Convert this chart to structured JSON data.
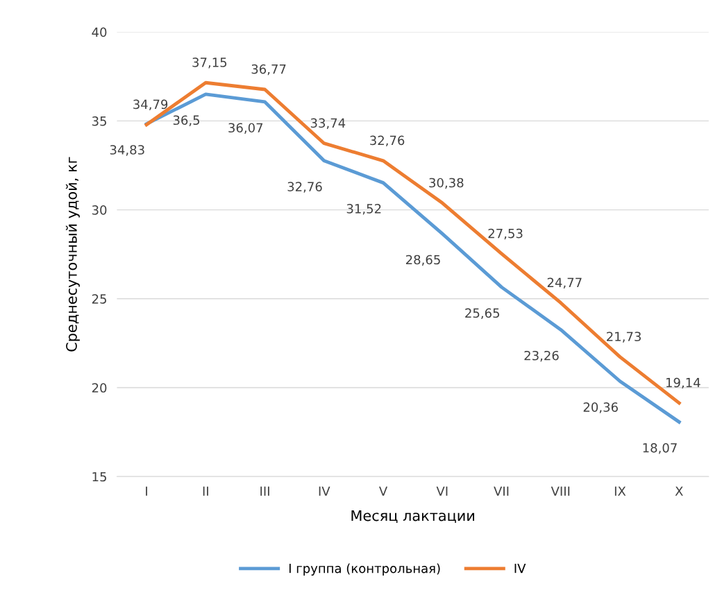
{
  "chart_data": {
    "type": "line",
    "xlabel": "Месяц лактации",
    "ylabel": "Среднесуточный удой, кг",
    "categories": [
      "I",
      "II",
      "III",
      "IV",
      "V",
      "VI",
      "VII",
      "VIII",
      "IX",
      "X"
    ],
    "series": [
      {
        "name": "I группа (контрольная)",
        "color": "#5b9bd5",
        "values": [
          34.83,
          36.5,
          36.07,
          32.76,
          31.52,
          28.65,
          25.65,
          23.26,
          20.36,
          18.07
        ],
        "value_labels": [
          "34,83",
          "36,5",
          "36,07",
          "32,76",
          "31,52",
          "28,65",
          "25,65",
          "23,26",
          "20,36",
          "18,07"
        ]
      },
      {
        "name": "IV",
        "color": "#ed7d31",
        "values": [
          34.79,
          37.15,
          36.77,
          33.74,
          32.76,
          30.38,
          27.53,
          24.77,
          21.73,
          19.14
        ],
        "value_labels": [
          "34,79",
          "37,15",
          "36,77",
          "33,74",
          "32,76",
          "30,38",
          "27,53",
          "24,77",
          "21,73",
          "19,14"
        ]
      }
    ],
    "ylim": [
      15,
      40
    ],
    "yticks": [
      15,
      20,
      25,
      30,
      35,
      40
    ],
    "grid": "y",
    "legend": "bottom",
    "marker": "none",
    "line_style": "solid"
  }
}
